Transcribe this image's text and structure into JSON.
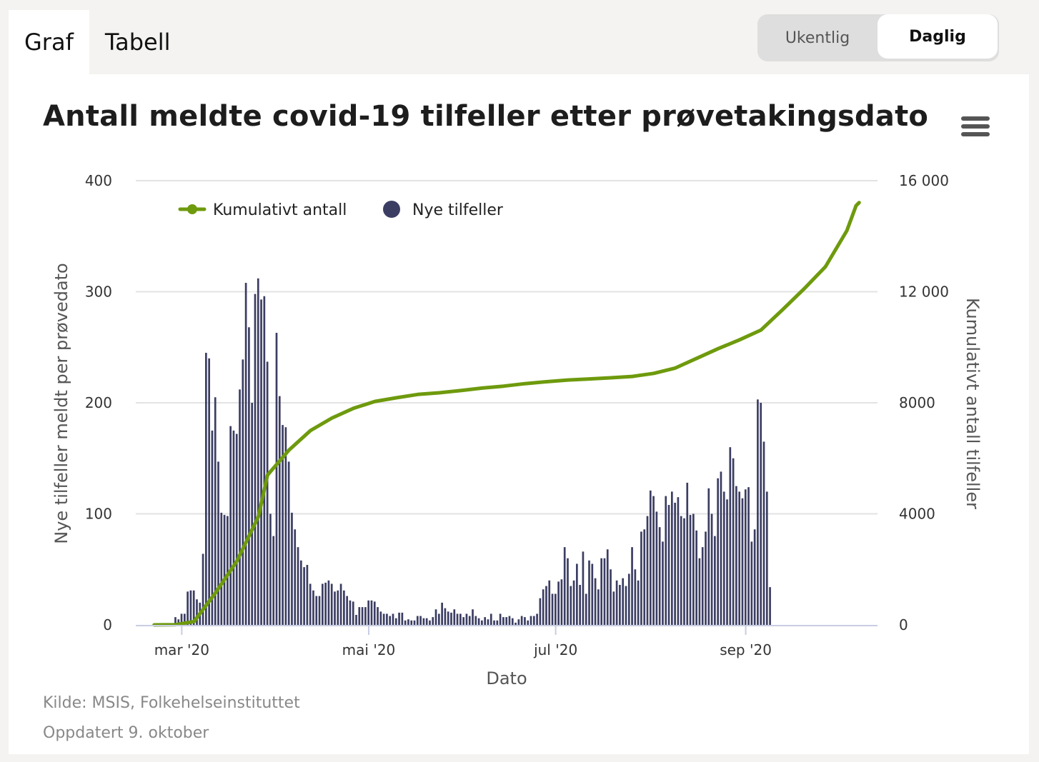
{
  "tabs": [
    {
      "label": "Graf",
      "active": true
    },
    {
      "label": "Tabell",
      "active": false
    }
  ],
  "toggle": [
    {
      "label": "Ukentlig",
      "active": false
    },
    {
      "label": "Daglig",
      "active": true
    }
  ],
  "title": "Antall meldte covid-19 tilfeller etter prøvetakingsdato",
  "menu_icon": "hamburger-menu-icon",
  "footer": {
    "source": "Kilde: MSIS, Folkehelseinstituttet",
    "updated": "Oppdatert 9. oktober"
  },
  "colors": {
    "bars": "#3b3d62",
    "line": "#6e9a0d",
    "grid": "#e3e3e3"
  },
  "chart_data": {
    "type": "bar",
    "x_start": "2020-02-21",
    "x_end": "2020-10-08",
    "xlabel": "Dato",
    "ylabel_left": "Nye tilfeller meldt per prøvedato",
    "ylabel_right": "Kumulativt antall tilfeller",
    "ylim_left": [
      0,
      400
    ],
    "ylim_right": [
      0,
      16000
    ],
    "yticks_left": [
      "0",
      "100",
      "200",
      "300",
      "400"
    ],
    "yticks_right": [
      "0",
      "4000",
      "8000",
      "12 000",
      "16 000"
    ],
    "xticks": [
      "mar '20",
      "mai '20",
      "jul '20",
      "sep '20"
    ],
    "legend": [
      {
        "name": "Kumulativt antall",
        "type": "line"
      },
      {
        "name": "Nye tilfeller",
        "type": "bar"
      }
    ],
    "legend_position": "top-left",
    "grid": true,
    "series": [
      {
        "name": "Nye tilfeller",
        "type": "bar",
        "values": [
          1,
          0,
          0,
          1,
          0,
          0,
          1,
          7,
          5,
          10,
          10,
          30,
          31,
          31,
          23,
          20,
          64,
          245,
          240,
          175,
          205,
          147,
          101,
          99,
          98,
          179,
          175,
          172,
          212,
          239,
          308,
          268,
          200,
          298,
          312,
          293,
          296,
          237,
          100,
          80,
          263,
          206,
          180,
          178,
          147,
          101,
          86,
          70,
          58,
          52,
          54,
          37,
          31,
          26,
          26,
          37,
          38,
          40,
          37,
          30,
          31,
          37,
          31,
          26,
          22,
          21,
          9,
          16,
          16,
          16,
          22,
          22,
          21,
          16,
          12,
          10,
          10,
          8,
          10,
          6,
          11,
          11,
          4,
          5,
          4,
          4,
          8,
          8,
          6,
          6,
          4,
          7,
          14,
          10,
          20,
          15,
          12,
          11,
          14,
          10,
          10,
          7,
          10,
          8,
          14,
          8,
          6,
          4,
          7,
          5,
          10,
          4,
          4,
          10,
          7,
          7,
          8,
          6,
          2,
          5,
          8,
          7,
          4,
          8,
          8,
          10,
          24,
          32,
          35,
          40,
          28,
          28,
          39,
          41,
          70,
          60,
          35,
          40,
          55,
          36,
          66,
          28,
          58,
          55,
          42,
          32,
          60,
          60,
          68,
          50,
          30,
          40,
          36,
          42,
          35,
          46,
          70,
          50,
          40,
          84,
          86,
          98,
          121,
          116,
          102,
          88,
          75,
          116,
          108,
          120,
          110,
          115,
          98,
          96,
          128,
          99,
          100,
          85,
          60,
          70,
          84,
          123,
          100,
          80,
          132,
          138,
          120,
          113,
          160,
          150,
          125,
          120,
          114,
          122,
          124,
          75,
          86,
          203,
          200,
          165,
          120,
          34
        ],
        "note_daily": "daily new cases"
      },
      {
        "name": "Kumulativt antall",
        "type": "line",
        "points": [
          [
            "2020-02-21",
            1
          ],
          [
            "2020-02-28",
            8
          ],
          [
            "2020-03-05",
            120
          ],
          [
            "2020-03-12",
            1150
          ],
          [
            "2020-03-19",
            2300
          ],
          [
            "2020-03-26",
            3900
          ],
          [
            "2020-03-29",
            5400
          ],
          [
            "2020-04-05",
            6300
          ],
          [
            "2020-04-12",
            7000
          ],
          [
            "2020-04-19",
            7450
          ],
          [
            "2020-04-26",
            7800
          ],
          [
            "2020-05-03",
            8050
          ],
          [
            "2020-05-10",
            8180
          ],
          [
            "2020-05-17",
            8300
          ],
          [
            "2020-05-24",
            8360
          ],
          [
            "2020-05-31",
            8440
          ],
          [
            "2020-06-07",
            8530
          ],
          [
            "2020-06-14",
            8600
          ],
          [
            "2020-06-21",
            8690
          ],
          [
            "2020-06-28",
            8760
          ],
          [
            "2020-07-05",
            8820
          ],
          [
            "2020-07-12",
            8860
          ],
          [
            "2020-07-19",
            8900
          ],
          [
            "2020-07-26",
            8950
          ],
          [
            "2020-08-02",
            9060
          ],
          [
            "2020-08-09",
            9250
          ],
          [
            "2020-08-16",
            9600
          ],
          [
            "2020-08-23",
            9950
          ],
          [
            "2020-08-30",
            10270
          ],
          [
            "2020-09-06",
            10620
          ],
          [
            "2020-09-13",
            11350
          ],
          [
            "2020-09-20",
            12100
          ],
          [
            "2020-09-27",
            12900
          ],
          [
            "2020-10-04",
            14200
          ],
          [
            "2020-10-07",
            15100
          ],
          [
            "2020-10-08",
            15210
          ]
        ]
      }
    ]
  }
}
